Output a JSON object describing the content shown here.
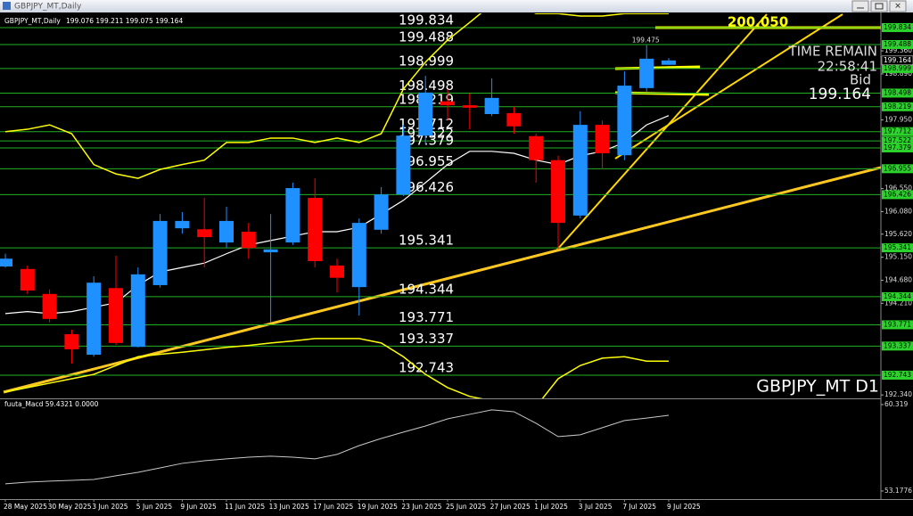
{
  "window": {
    "title": "GBPJPY_MT,Daily"
  },
  "chart_data": [
    {
      "type": "candlestick",
      "title": "GBPJPY_MT,Daily",
      "subtitle": "199.076 199.211 199.075 199.164",
      "categories": [
        "28 May 2025",
        null,
        "30 May 2025",
        null,
        "3 Jun 2025",
        null,
        "5 Jun 2025",
        null,
        "9 Jun 2025",
        null,
        "11 Jun 2025",
        null,
        "13 Jun 2025",
        null,
        "17 Jun 2025",
        null,
        "19 Jun 2025",
        null,
        "23 Jun 2025",
        null,
        "25 Jun 2025",
        null,
        "27 Jun 2025",
        null,
        "1 Jul 2025",
        null,
        "3 Jul 2025",
        null,
        "7 Jul 2025",
        null,
        "9 Jul 2025"
      ],
      "open": [
        194.96,
        194.91,
        194.4,
        193.58,
        193.16,
        194.52,
        193.32,
        194.58,
        195.74,
        195.72,
        195.45,
        195.67,
        195.25,
        195.45,
        196.36,
        194.98,
        194.54,
        195.71,
        196.43,
        197.63,
        198.33,
        198.25,
        198.07,
        198.09,
        197.62,
        197.13,
        196.0,
        197.85,
        197.23,
        198.6,
        199.075
      ],
      "high": [
        195.22,
        194.98,
        194.49,
        193.67,
        194.76,
        195.18,
        194.94,
        196.03,
        196.07,
        196.36,
        196.18,
        195.85,
        196.03,
        196.67,
        196.76,
        195.12,
        195.94,
        196.58,
        197.85,
        198.85,
        198.58,
        198.49,
        198.8,
        198.22,
        197.67,
        197.22,
        198.13,
        197.94,
        198.94,
        199.475,
        199.211
      ],
      "low": [
        194.94,
        194.4,
        193.82,
        192.98,
        193.12,
        193.36,
        193.31,
        194.53,
        195.63,
        194.94,
        195.34,
        195.12,
        193.82,
        195.4,
        194.94,
        194.43,
        193.96,
        195.63,
        196.4,
        197.45,
        197.94,
        197.76,
        198.03,
        197.67,
        196.67,
        195.31,
        195.94,
        196.94,
        197.13,
        198.53,
        199.075
      ],
      "close": [
        195.12,
        194.47,
        193.89,
        193.27,
        194.63,
        193.4,
        194.8,
        195.89,
        195.89,
        195.56,
        195.89,
        195.34,
        195.31,
        196.56,
        195.07,
        194.73,
        195.85,
        196.43,
        197.63,
        198.51,
        198.25,
        198.2,
        198.4,
        197.82,
        197.13,
        195.85,
        197.85,
        197.27,
        198.65,
        199.2,
        199.164
      ],
      "up_color": "#1e90ff",
      "down_color": "#ff0000",
      "ylim": [
        192.27,
        200.07
      ],
      "yticks": [
        {
          "value": 199.36,
          "label": "199.360"
        },
        {
          "value": 198.89,
          "label": "198.890"
        },
        {
          "value": 197.95,
          "label": "197.950"
        },
        {
          "value": 196.55,
          "label": "196.550"
        },
        {
          "value": 196.08,
          "label": "196.080"
        },
        {
          "value": 195.62,
          "label": "195.620"
        },
        {
          "value": 195.15,
          "label": "195.150"
        },
        {
          "value": 194.68,
          "label": "194.680"
        },
        {
          "value": 194.21,
          "label": "194.210"
        },
        {
          "value": 192.34,
          "label": "192.340"
        }
      ],
      "levels": [
        199.834,
        199.488,
        198.999,
        198.498,
        198.219,
        197.712,
        197.522,
        197.379,
        196.955,
        196.426,
        195.341,
        194.344,
        193.771,
        193.337,
        192.743
      ],
      "level_color": "#22b022",
      "lines": [
        {
          "color": "#ffff00",
          "values": [
            197.71,
            197.76,
            197.85,
            197.67,
            197.04,
            196.85,
            196.76,
            196.94,
            197.04,
            197.13,
            197.49,
            197.49,
            197.58,
            197.58,
            197.49,
            197.58,
            197.49,
            197.67,
            198.58,
            199.13,
            199.58,
            199.94,
            200.31,
            200.31,
            200.12,
            200.12,
            200.07,
            200.07,
            200.12,
            200.12,
            200.12
          ]
        },
        {
          "color": "#ffff00",
          "values": [
            192.4,
            192.49,
            192.58,
            192.67,
            192.76,
            192.94,
            193.12,
            193.17,
            193.21,
            193.26,
            193.31,
            193.35,
            193.4,
            193.44,
            193.49,
            193.49,
            193.49,
            193.4,
            193.12,
            192.76,
            192.49,
            192.31,
            192.22,
            192.0,
            192.1,
            192.67,
            192.94,
            193.09,
            193.12,
            193.03,
            193.03
          ]
        },
        {
          "color": "#ffffff",
          "values": [
            194.0,
            194.04,
            194.0,
            194.04,
            194.13,
            194.22,
            194.58,
            194.85,
            194.94,
            195.03,
            195.22,
            195.4,
            195.49,
            195.58,
            195.67,
            195.67,
            195.76,
            196.03,
            196.31,
            196.67,
            197.04,
            197.31,
            197.31,
            197.27,
            197.13,
            197.04,
            197.22,
            197.31,
            197.49,
            197.85,
            198.04
          ]
        }
      ],
      "target": {
        "value": 200.05,
        "label": "200.050"
      },
      "high_label": 199.475,
      "time_remain": {
        "label": "TIME REMAIN",
        "value": "22:58:41"
      },
      "bid": {
        "label": "Bid",
        "value": 199.164
      },
      "watermark": "GBPJPY_MT D1"
    },
    {
      "type": "line",
      "title": "fuuta_Macd 59.4321 0.0000",
      "ylim": [
        52.51,
        60.61
      ],
      "yticks": [
        60.319,
        53.1776
      ],
      "series": [
        {
          "color": "#c8c8c8",
          "values": [
            53.77,
            53.91,
            53.99,
            54.06,
            54.13,
            54.43,
            54.72,
            55.09,
            55.46,
            55.68,
            55.83,
            55.97,
            56.05,
            55.97,
            55.83,
            56.2,
            56.93,
            57.52,
            58.04,
            58.55,
            59.14,
            59.51,
            59.88,
            59.73,
            58.77,
            57.67,
            57.82,
            58.41,
            59.0,
            59.2,
            59.4321
          ]
        }
      ]
    }
  ]
}
